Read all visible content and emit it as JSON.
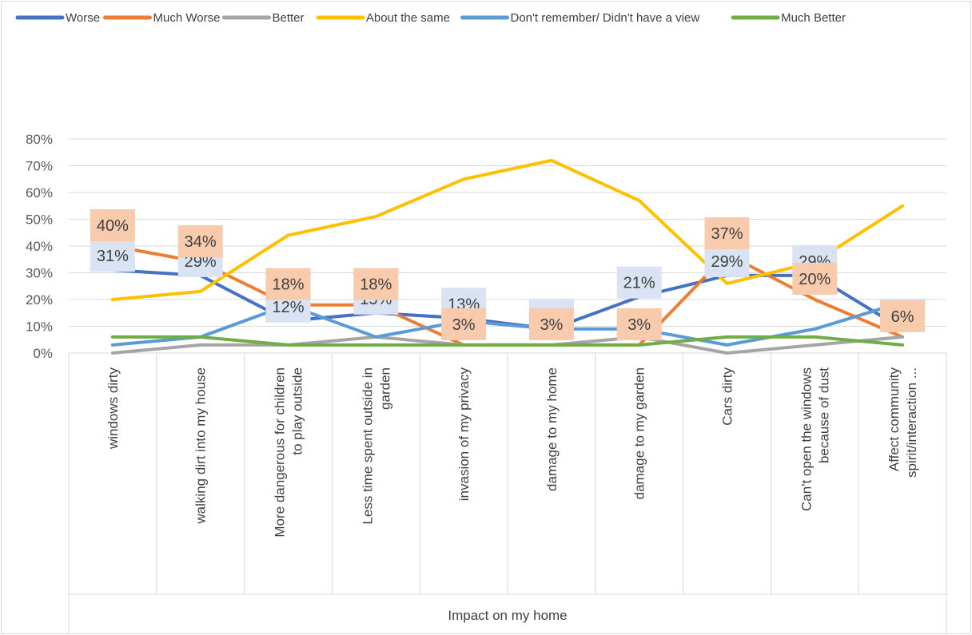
{
  "chart_data": {
    "type": "line",
    "title": "",
    "xlabel": "Impact on my home",
    "ylabel": "",
    "ylim": [
      0,
      0.8
    ],
    "yticks": [
      "0%",
      "10%",
      "20%",
      "30%",
      "40%",
      "50%",
      "60%",
      "70%",
      "80%"
    ],
    "grid": true,
    "legend_position": "top",
    "categories": [
      "windows  dirty",
      "walking dirt  into my house",
      "More dangerous for children to play outside",
      "Less time spent outside in garden",
      "invasion of my privacy",
      "damage to my home",
      "damage to my garden",
      "Cars dirty",
      "Can't open the windows because of dust",
      "Affect community spirit/interaction ..."
    ],
    "category_lines": [
      [
        "windows  dirty"
      ],
      [
        "walking dirt  into my house"
      ],
      [
        "More dangerous for children",
        "to play outside"
      ],
      [
        "Less time spent outside in",
        "garden"
      ],
      [
        "invasion of my privacy"
      ],
      [
        "damage to my home"
      ],
      [
        "damage to my garden"
      ],
      [
        "Cars dirty"
      ],
      [
        "Can't open the windows",
        "because of dust"
      ],
      [
        "Affect community",
        "spirit/interaction ..."
      ]
    ],
    "series": [
      {
        "name": "Worse",
        "color": "#4472C4",
        "values": [
          0.31,
          0.29,
          0.12,
          0.15,
          0.13,
          0.09,
          0.21,
          0.29,
          0.29,
          0.09
        ],
        "labels": [
          "31%",
          "29%",
          "12%",
          "15%",
          "13%",
          "9%",
          "21%",
          "29%",
          "29%",
          "9%"
        ],
        "label_bg": "#DAE3F3"
      },
      {
        "name": "Much Worse",
        "color": "#ED7D31",
        "values": [
          0.4,
          0.34,
          0.18,
          0.18,
          0.03,
          0.03,
          0.03,
          0.37,
          0.2,
          0.06
        ],
        "labels": [
          "40%",
          "34%",
          "18%",
          "18%",
          "3%",
          "3%",
          "3%",
          "37%",
          "20%",
          "6%"
        ],
        "label_bg": "#F8CBAD"
      },
      {
        "name": "Better",
        "color": "#A5A5A5",
        "values": [
          0.0,
          0.03,
          0.03,
          0.06,
          0.03,
          0.03,
          0.06,
          0.0,
          0.03,
          0.06
        ]
      },
      {
        "name": "About the same",
        "color": "#FFC000",
        "values": [
          0.2,
          0.23,
          0.44,
          0.51,
          0.65,
          0.72,
          0.57,
          0.26,
          0.34,
          0.55
        ]
      },
      {
        "name": "Don't remember/ Didn't have a view",
        "color": "#5B9BD5",
        "values": [
          0.03,
          0.06,
          0.18,
          0.06,
          0.12,
          0.09,
          0.09,
          0.03,
          0.09,
          0.19
        ]
      },
      {
        "name": "Much Better",
        "color": "#70AD47",
        "values": [
          0.06,
          0.06,
          0.03,
          0.03,
          0.03,
          0.03,
          0.03,
          0.06,
          0.06,
          0.03
        ]
      }
    ]
  }
}
